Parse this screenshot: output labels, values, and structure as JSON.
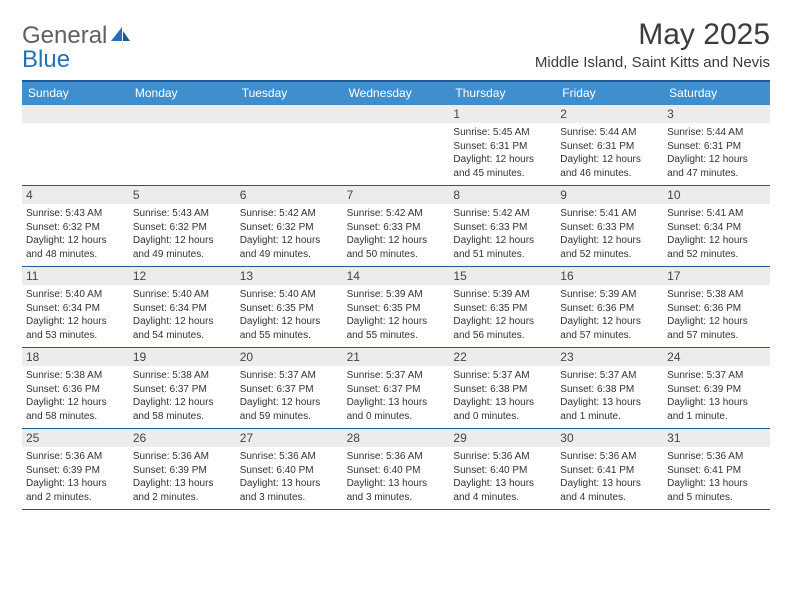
{
  "logo": {
    "general": "General",
    "blue": "Blue"
  },
  "title": "May 2025",
  "location": "Middle Island, Saint Kitts and Nevis",
  "colors": {
    "header_bg": "#3f8fcf",
    "border": "#1d5a93",
    "daynum_bg": "#ececec",
    "logo_gray": "#5f6062",
    "logo_blue": "#2571b8"
  },
  "day_names": [
    "Sunday",
    "Monday",
    "Tuesday",
    "Wednesday",
    "Thursday",
    "Friday",
    "Saturday"
  ],
  "weeks": [
    [
      {
        "empty": true
      },
      {
        "empty": true
      },
      {
        "empty": true
      },
      {
        "empty": true
      },
      {
        "day": "1",
        "sunrise": "Sunrise: 5:45 AM",
        "sunset": "Sunset: 6:31 PM",
        "daylight1": "Daylight: 12 hours",
        "daylight2": "and 45 minutes."
      },
      {
        "day": "2",
        "sunrise": "Sunrise: 5:44 AM",
        "sunset": "Sunset: 6:31 PM",
        "daylight1": "Daylight: 12 hours",
        "daylight2": "and 46 minutes."
      },
      {
        "day": "3",
        "sunrise": "Sunrise: 5:44 AM",
        "sunset": "Sunset: 6:31 PM",
        "daylight1": "Daylight: 12 hours",
        "daylight2": "and 47 minutes."
      }
    ],
    [
      {
        "day": "4",
        "sunrise": "Sunrise: 5:43 AM",
        "sunset": "Sunset: 6:32 PM",
        "daylight1": "Daylight: 12 hours",
        "daylight2": "and 48 minutes."
      },
      {
        "day": "5",
        "sunrise": "Sunrise: 5:43 AM",
        "sunset": "Sunset: 6:32 PM",
        "daylight1": "Daylight: 12 hours",
        "daylight2": "and 49 minutes."
      },
      {
        "day": "6",
        "sunrise": "Sunrise: 5:42 AM",
        "sunset": "Sunset: 6:32 PM",
        "daylight1": "Daylight: 12 hours",
        "daylight2": "and 49 minutes."
      },
      {
        "day": "7",
        "sunrise": "Sunrise: 5:42 AM",
        "sunset": "Sunset: 6:33 PM",
        "daylight1": "Daylight: 12 hours",
        "daylight2": "and 50 minutes."
      },
      {
        "day": "8",
        "sunrise": "Sunrise: 5:42 AM",
        "sunset": "Sunset: 6:33 PM",
        "daylight1": "Daylight: 12 hours",
        "daylight2": "and 51 minutes."
      },
      {
        "day": "9",
        "sunrise": "Sunrise: 5:41 AM",
        "sunset": "Sunset: 6:33 PM",
        "daylight1": "Daylight: 12 hours",
        "daylight2": "and 52 minutes."
      },
      {
        "day": "10",
        "sunrise": "Sunrise: 5:41 AM",
        "sunset": "Sunset: 6:34 PM",
        "daylight1": "Daylight: 12 hours",
        "daylight2": "and 52 minutes."
      }
    ],
    [
      {
        "day": "11",
        "sunrise": "Sunrise: 5:40 AM",
        "sunset": "Sunset: 6:34 PM",
        "daylight1": "Daylight: 12 hours",
        "daylight2": "and 53 minutes."
      },
      {
        "day": "12",
        "sunrise": "Sunrise: 5:40 AM",
        "sunset": "Sunset: 6:34 PM",
        "daylight1": "Daylight: 12 hours",
        "daylight2": "and 54 minutes."
      },
      {
        "day": "13",
        "sunrise": "Sunrise: 5:40 AM",
        "sunset": "Sunset: 6:35 PM",
        "daylight1": "Daylight: 12 hours",
        "daylight2": "and 55 minutes."
      },
      {
        "day": "14",
        "sunrise": "Sunrise: 5:39 AM",
        "sunset": "Sunset: 6:35 PM",
        "daylight1": "Daylight: 12 hours",
        "daylight2": "and 55 minutes."
      },
      {
        "day": "15",
        "sunrise": "Sunrise: 5:39 AM",
        "sunset": "Sunset: 6:35 PM",
        "daylight1": "Daylight: 12 hours",
        "daylight2": "and 56 minutes."
      },
      {
        "day": "16",
        "sunrise": "Sunrise: 5:39 AM",
        "sunset": "Sunset: 6:36 PM",
        "daylight1": "Daylight: 12 hours",
        "daylight2": "and 57 minutes."
      },
      {
        "day": "17",
        "sunrise": "Sunrise: 5:38 AM",
        "sunset": "Sunset: 6:36 PM",
        "daylight1": "Daylight: 12 hours",
        "daylight2": "and 57 minutes."
      }
    ],
    [
      {
        "day": "18",
        "sunrise": "Sunrise: 5:38 AM",
        "sunset": "Sunset: 6:36 PM",
        "daylight1": "Daylight: 12 hours",
        "daylight2": "and 58 minutes."
      },
      {
        "day": "19",
        "sunrise": "Sunrise: 5:38 AM",
        "sunset": "Sunset: 6:37 PM",
        "daylight1": "Daylight: 12 hours",
        "daylight2": "and 58 minutes."
      },
      {
        "day": "20",
        "sunrise": "Sunrise: 5:37 AM",
        "sunset": "Sunset: 6:37 PM",
        "daylight1": "Daylight: 12 hours",
        "daylight2": "and 59 minutes."
      },
      {
        "day": "21",
        "sunrise": "Sunrise: 5:37 AM",
        "sunset": "Sunset: 6:37 PM",
        "daylight1": "Daylight: 13 hours",
        "daylight2": "and 0 minutes."
      },
      {
        "day": "22",
        "sunrise": "Sunrise: 5:37 AM",
        "sunset": "Sunset: 6:38 PM",
        "daylight1": "Daylight: 13 hours",
        "daylight2": "and 0 minutes."
      },
      {
        "day": "23",
        "sunrise": "Sunrise: 5:37 AM",
        "sunset": "Sunset: 6:38 PM",
        "daylight1": "Daylight: 13 hours",
        "daylight2": "and 1 minute."
      },
      {
        "day": "24",
        "sunrise": "Sunrise: 5:37 AM",
        "sunset": "Sunset: 6:39 PM",
        "daylight1": "Daylight: 13 hours",
        "daylight2": "and 1 minute."
      }
    ],
    [
      {
        "day": "25",
        "sunrise": "Sunrise: 5:36 AM",
        "sunset": "Sunset: 6:39 PM",
        "daylight1": "Daylight: 13 hours",
        "daylight2": "and 2 minutes."
      },
      {
        "day": "26",
        "sunrise": "Sunrise: 5:36 AM",
        "sunset": "Sunset: 6:39 PM",
        "daylight1": "Daylight: 13 hours",
        "daylight2": "and 2 minutes."
      },
      {
        "day": "27",
        "sunrise": "Sunrise: 5:36 AM",
        "sunset": "Sunset: 6:40 PM",
        "daylight1": "Daylight: 13 hours",
        "daylight2": "and 3 minutes."
      },
      {
        "day": "28",
        "sunrise": "Sunrise: 5:36 AM",
        "sunset": "Sunset: 6:40 PM",
        "daylight1": "Daylight: 13 hours",
        "daylight2": "and 3 minutes."
      },
      {
        "day": "29",
        "sunrise": "Sunrise: 5:36 AM",
        "sunset": "Sunset: 6:40 PM",
        "daylight1": "Daylight: 13 hours",
        "daylight2": "and 4 minutes."
      },
      {
        "day": "30",
        "sunrise": "Sunrise: 5:36 AM",
        "sunset": "Sunset: 6:41 PM",
        "daylight1": "Daylight: 13 hours",
        "daylight2": "and 4 minutes."
      },
      {
        "day": "31",
        "sunrise": "Sunrise: 5:36 AM",
        "sunset": "Sunset: 6:41 PM",
        "daylight1": "Daylight: 13 hours",
        "daylight2": "and 5 minutes."
      }
    ]
  ]
}
